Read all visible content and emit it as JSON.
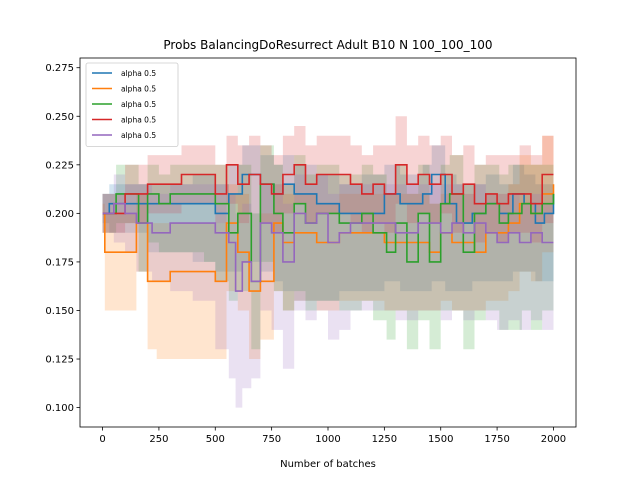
{
  "chart_data": {
    "type": "line",
    "title": "Probs BalancingDoResurrect Adult B10 N 100_100_100",
    "xlabel": "Number of batches",
    "ylabel": "",
    "xlim": [
      -100,
      2100
    ],
    "ylim": [
      0.09,
      0.28
    ],
    "xticks": [
      0,
      250,
      500,
      750,
      1000,
      1250,
      1500,
      1750,
      2000
    ],
    "yticks": [
      0.1,
      0.125,
      0.15,
      0.175,
      0.2,
      0.225,
      0.25,
      0.275
    ],
    "xtick_labels": [
      "0",
      "250",
      "500",
      "750",
      "1000",
      "1250",
      "1500",
      "1750",
      "2000"
    ],
    "ytick_labels": [
      "0.100",
      "0.125",
      "0.150",
      "0.175",
      "0.200",
      "0.225",
      "0.250",
      "0.275"
    ],
    "grid": false,
    "legend_position": "top-left",
    "series": [
      {
        "name": "alpha 0.5",
        "color": "#1f77b4",
        "x": [
          0,
          30,
          200,
          400,
          500,
          560,
          620,
          700,
          760,
          800,
          850,
          950,
          1050,
          1150,
          1250,
          1320,
          1420,
          1460,
          1520,
          1570,
          1640,
          1700,
          1760,
          1820,
          1870,
          1920,
          1960,
          2000
        ],
        "y": [
          0.2,
          0.205,
          0.205,
          0.205,
          0.2,
          0.21,
          0.22,
          0.215,
          0.21,
          0.215,
          0.21,
          0.205,
          0.2,
          0.2,
          0.21,
          0.205,
          0.21,
          0.22,
          0.205,
          0.195,
          0.2,
          0.205,
          0.2,
          0.21,
          0.205,
          0.195,
          0.2,
          0.21
        ],
        "band_upper": [
          0.21,
          0.215,
          0.215,
          0.22,
          0.215,
          0.225,
          0.235,
          0.23,
          0.225,
          0.23,
          0.225,
          0.22,
          0.215,
          0.22,
          0.225,
          0.22,
          0.225,
          0.235,
          0.22,
          0.215,
          0.215,
          0.22,
          0.215,
          0.225,
          0.22,
          0.215,
          0.215,
          0.225
        ],
        "band_lower": [
          0.195,
          0.19,
          0.18,
          0.175,
          0.17,
          0.17,
          0.175,
          0.17,
          0.165,
          0.16,
          0.155,
          0.155,
          0.16,
          0.16,
          0.165,
          0.16,
          0.16,
          0.165,
          0.16,
          0.16,
          0.165,
          0.165,
          0.165,
          0.17,
          0.17,
          0.165,
          0.165,
          0.17
        ]
      },
      {
        "name": "alpha 0.5",
        "color": "#ff7f0e",
        "x": [
          0,
          10,
          150,
          200,
          240,
          300,
          400,
          500,
          550,
          600,
          650,
          700,
          760,
          800,
          850,
          950,
          1050,
          1150,
          1250,
          1350,
          1450,
          1500,
          1550,
          1600,
          1650,
          1700,
          1800,
          1850,
          1900,
          1950,
          2000
        ],
        "y": [
          0.2,
          0.18,
          0.195,
          0.165,
          0.165,
          0.17,
          0.17,
          0.165,
          0.195,
          0.18,
          0.16,
          0.165,
          0.195,
          0.185,
          0.19,
          0.185,
          0.19,
          0.19,
          0.185,
          0.185,
          0.18,
          0.19,
          0.185,
          0.185,
          0.18,
          0.19,
          0.195,
          0.205,
          0.2,
          0.21,
          0.215
        ],
        "band_upper": [
          0.205,
          0.2,
          0.21,
          0.195,
          0.195,
          0.195,
          0.195,
          0.195,
          0.215,
          0.21,
          0.2,
          0.2,
          0.215,
          0.21,
          0.21,
          0.205,
          0.21,
          0.21,
          0.21,
          0.21,
          0.205,
          0.21,
          0.21,
          0.21,
          0.205,
          0.21,
          0.215,
          0.23,
          0.225,
          0.24,
          0.24
        ],
        "band_lower": [
          0.19,
          0.15,
          0.17,
          0.13,
          0.125,
          0.125,
          0.125,
          0.125,
          0.16,
          0.15,
          0.125,
          0.135,
          0.16,
          0.15,
          0.155,
          0.15,
          0.155,
          0.155,
          0.15,
          0.15,
          0.15,
          0.155,
          0.15,
          0.15,
          0.15,
          0.155,
          0.16,
          0.17,
          0.165,
          0.18,
          0.19
        ]
      },
      {
        "name": "alpha 0.5",
        "color": "#2ca02c",
        "x": [
          0,
          60,
          160,
          200,
          250,
          300,
          450,
          500,
          560,
          600,
          660,
          700,
          760,
          800,
          850,
          900,
          950,
          1050,
          1150,
          1200,
          1260,
          1300,
          1350,
          1400,
          1450,
          1500,
          1540,
          1600,
          1650,
          1700,
          1760,
          1800,
          1860,
          1900,
          1950,
          2000
        ],
        "y": [
          0.2,
          0.21,
          0.195,
          0.21,
          0.205,
          0.21,
          0.21,
          0.205,
          0.19,
          0.2,
          0.165,
          0.215,
          0.2,
          0.19,
          0.205,
          0.195,
          0.2,
          0.195,
          0.2,
          0.19,
          0.18,
          0.195,
          0.175,
          0.2,
          0.175,
          0.205,
          0.21,
          0.18,
          0.2,
          0.205,
          0.195,
          0.2,
          0.205,
          0.2,
          0.205,
          0.21
        ],
        "band_upper": [
          0.21,
          0.225,
          0.215,
          0.225,
          0.22,
          0.225,
          0.225,
          0.225,
          0.21,
          0.225,
          0.2,
          0.235,
          0.225,
          0.215,
          0.23,
          0.22,
          0.225,
          0.22,
          0.225,
          0.22,
          0.21,
          0.225,
          0.21,
          0.225,
          0.205,
          0.225,
          0.23,
          0.215,
          0.225,
          0.225,
          0.22,
          0.225,
          0.225,
          0.225,
          0.225,
          0.23
        ],
        "band_lower": [
          0.19,
          0.195,
          0.17,
          0.185,
          0.18,
          0.18,
          0.175,
          0.165,
          0.155,
          0.16,
          0.13,
          0.175,
          0.16,
          0.15,
          0.16,
          0.15,
          0.155,
          0.15,
          0.155,
          0.145,
          0.135,
          0.15,
          0.13,
          0.145,
          0.13,
          0.15,
          0.15,
          0.13,
          0.145,
          0.15,
          0.14,
          0.14,
          0.15,
          0.14,
          0.15,
          0.16
        ]
      },
      {
        "name": "alpha 0.5",
        "color": "#d62728",
        "x": [
          0,
          100,
          200,
          350,
          450,
          500,
          550,
          600,
          650,
          700,
          750,
          800,
          850,
          900,
          950,
          1000,
          1100,
          1150,
          1200,
          1250,
          1300,
          1350,
          1400,
          1450,
          1500,
          1550,
          1600,
          1650,
          1700,
          1750,
          1800,
          1850,
          1900,
          1950,
          2000
        ],
        "y": [
          0.2,
          0.21,
          0.215,
          0.22,
          0.22,
          0.21,
          0.225,
          0.215,
          0.22,
          0.215,
          0.21,
          0.22,
          0.225,
          0.215,
          0.22,
          0.22,
          0.215,
          0.21,
          0.215,
          0.21,
          0.225,
          0.215,
          0.22,
          0.215,
          0.22,
          0.21,
          0.215,
          0.205,
          0.21,
          0.205,
          0.21,
          0.21,
          0.205,
          0.22,
          0.22
        ],
        "band_upper": [
          0.21,
          0.225,
          0.23,
          0.235,
          0.235,
          0.225,
          0.24,
          0.235,
          0.24,
          0.235,
          0.23,
          0.24,
          0.245,
          0.235,
          0.24,
          0.24,
          0.235,
          0.23,
          0.235,
          0.235,
          0.25,
          0.235,
          0.24,
          0.235,
          0.24,
          0.23,
          0.235,
          0.225,
          0.23,
          0.23,
          0.23,
          0.235,
          0.23,
          0.24,
          0.24
        ],
        "band_lower": [
          0.19,
          0.195,
          0.2,
          0.205,
          0.205,
          0.195,
          0.205,
          0.195,
          0.2,
          0.195,
          0.19,
          0.2,
          0.205,
          0.195,
          0.2,
          0.2,
          0.195,
          0.19,
          0.195,
          0.19,
          0.205,
          0.195,
          0.2,
          0.195,
          0.2,
          0.19,
          0.195,
          0.185,
          0.19,
          0.185,
          0.19,
          0.19,
          0.185,
          0.195,
          0.195
        ]
      },
      {
        "name": "alpha 0.5",
        "color": "#9467bd",
        "x": [
          0,
          50,
          100,
          150,
          220,
          300,
          400,
          500,
          560,
          590,
          620,
          660,
          700,
          750,
          800,
          850,
          900,
          950,
          1000,
          1050,
          1100,
          1200,
          1300,
          1400,
          1500,
          1550,
          1600,
          1650,
          1700,
          1750,
          1800,
          1850,
          1900,
          1950,
          2000
        ],
        "y": [
          0.2,
          0.205,
          0.2,
          0.195,
          0.19,
          0.195,
          0.195,
          0.19,
          0.185,
          0.16,
          0.175,
          0.165,
          0.195,
          0.19,
          0.175,
          0.2,
          0.195,
          0.2,
          0.185,
          0.19,
          0.195,
          0.195,
          0.19,
          0.195,
          0.19,
          0.195,
          0.19,
          0.195,
          0.19,
          0.185,
          0.19,
          0.185,
          0.19,
          0.185,
          0.185
        ],
        "band_upper": [
          0.21,
          0.22,
          0.215,
          0.215,
          0.21,
          0.215,
          0.215,
          0.215,
          0.21,
          0.2,
          0.205,
          0.2,
          0.215,
          0.215,
          0.205,
          0.22,
          0.215,
          0.22,
          0.21,
          0.215,
          0.215,
          0.215,
          0.215,
          0.215,
          0.215,
          0.215,
          0.21,
          0.215,
          0.21,
          0.21,
          0.21,
          0.205,
          0.21,
          0.205,
          0.205
        ],
        "band_lower": [
          0.19,
          0.185,
          0.18,
          0.17,
          0.165,
          0.16,
          0.155,
          0.13,
          0.115,
          0.1,
          0.11,
          0.115,
          0.15,
          0.14,
          0.12,
          0.15,
          0.145,
          0.15,
          0.135,
          0.14,
          0.15,
          0.15,
          0.145,
          0.15,
          0.145,
          0.15,
          0.145,
          0.15,
          0.145,
          0.14,
          0.145,
          0.14,
          0.145,
          0.14,
          0.145
        ]
      }
    ]
  }
}
